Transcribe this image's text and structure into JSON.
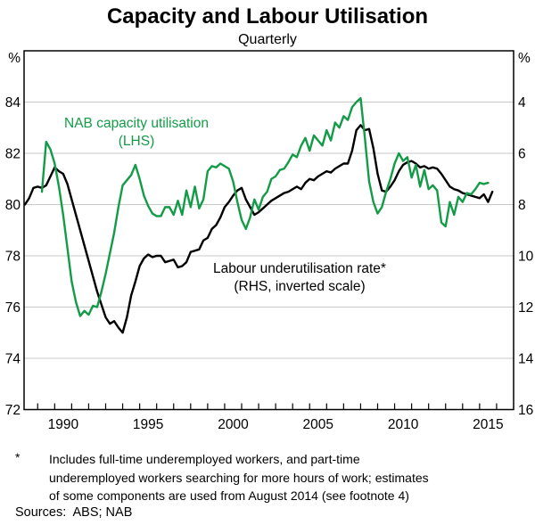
{
  "chart_data": {
    "type": "line",
    "title": "Capacity and Labour Utilisation",
    "subtitle": "Quarterly",
    "grid": true,
    "style": {
      "grid_color": "#c9c9c9",
      "axis_color": "#000000"
    },
    "x_axis": {
      "range": [
        1988.2,
        2017.0
      ],
      "minor_tick_start": 1989,
      "minor_tick_end": 2016,
      "labels": [
        1990,
        1995,
        2000,
        2005,
        2010,
        2015
      ]
    },
    "left_axis": {
      "unit": "%",
      "min": 72,
      "max": 86,
      "ticks": [
        84,
        82,
        80,
        78,
        76,
        74,
        72
      ],
      "gridlines": [
        84,
        82,
        80,
        78,
        76,
        74
      ]
    },
    "right_axis": {
      "unit": "%",
      "inverted": true,
      "offset": 88,
      "ticks": [
        4,
        6,
        8,
        10,
        12,
        14,
        16
      ],
      "note": "right value = 88 - left value (inverted scale)"
    },
    "series": [
      {
        "name": "NAB capacity utilisation (LHS)",
        "slug": "nab-capacity-utilisation",
        "label_lines": [
          "NAB capacity utilisation",
          "(LHS)"
        ],
        "axis": "left",
        "color": "#149b48",
        "x_start": 1989.25,
        "x_step": 0.25,
        "values": [
          80.5,
          82.45,
          82.15,
          81.6,
          80.7,
          79.6,
          78.3,
          77.0,
          76.2,
          75.65,
          75.85,
          75.7,
          76.05,
          76.0,
          76.6,
          77.3,
          78.1,
          78.9,
          79.9,
          80.75,
          80.95,
          81.15,
          81.55,
          81.0,
          80.35,
          79.95,
          79.65,
          79.55,
          79.55,
          79.9,
          79.9,
          79.6,
          80.15,
          79.6,
          80.55,
          79.9,
          80.7,
          79.85,
          80.2,
          81.3,
          81.5,
          81.45,
          81.6,
          81.5,
          81.4,
          80.9,
          80.1,
          79.4,
          79.05,
          79.5,
          80.2,
          79.8,
          80.3,
          80.5,
          81.0,
          81.1,
          81.35,
          81.4,
          81.65,
          81.95,
          81.85,
          82.3,
          82.6,
          82.1,
          82.7,
          82.5,
          82.3,
          82.9,
          82.5,
          83.2,
          83.0,
          83.45,
          83.3,
          83.8,
          84.0,
          84.15,
          82.6,
          80.9,
          80.1,
          79.65,
          79.9,
          80.5,
          81.0,
          81.6,
          82.0,
          81.7,
          81.85,
          81.05,
          81.55,
          80.7,
          81.35,
          80.6,
          80.75,
          80.55,
          79.3,
          79.15,
          80.1,
          79.6,
          80.3,
          80.1,
          80.45,
          80.4,
          80.6,
          80.85,
          80.8,
          80.85
        ]
      },
      {
        "name": "Labour underutilisation rate (RHS, inverted scale)",
        "slug": "labour-underutilisation-rate",
        "label_lines": [
          "Labour underutilisation rate*",
          "(RHS, inverted scale)"
        ],
        "axis": "right",
        "color": "#000000",
        "x_start": 1988.25,
        "x_step": 0.25,
        "values": [
          8.0,
          7.75,
          7.35,
          7.3,
          7.35,
          7.25,
          6.9,
          6.55,
          6.7,
          6.8,
          7.2,
          7.8,
          8.4,
          9.0,
          9.6,
          10.2,
          10.8,
          11.4,
          11.9,
          12.4,
          12.65,
          12.55,
          12.8,
          13.0,
          12.4,
          11.55,
          11.0,
          10.4,
          10.1,
          9.95,
          10.05,
          10.0,
          10.0,
          10.25,
          10.2,
          10.15,
          10.45,
          10.4,
          10.25,
          9.85,
          9.8,
          9.75,
          9.4,
          9.3,
          8.95,
          8.8,
          8.5,
          8.1,
          7.9,
          7.65,
          7.45,
          7.35,
          7.8,
          8.1,
          8.4,
          8.3,
          8.15,
          8.0,
          7.85,
          7.75,
          7.65,
          7.55,
          7.5,
          7.4,
          7.3,
          7.4,
          7.15,
          7.0,
          7.05,
          6.9,
          6.8,
          6.7,
          6.75,
          6.6,
          6.5,
          6.4,
          6.4,
          5.9,
          5.1,
          4.9,
          5.1,
          5.05,
          5.8,
          6.8,
          7.45,
          7.5,
          7.3,
          7.05,
          6.7,
          6.45,
          6.35,
          6.3,
          6.4,
          6.55,
          6.5,
          6.6,
          6.55,
          6.6,
          6.8,
          7.05,
          7.3,
          7.4,
          7.45,
          7.55,
          7.6,
          7.65,
          7.7,
          7.75,
          7.6,
          7.9,
          7.5
        ]
      }
    ]
  },
  "footnote": {
    "marker": "*",
    "lines": [
      "Includes full-time underemployed workers, and part-time",
      "underemployed workers searching for more hours of work; estimates",
      "of some components are used from August 2014 (see footnote 4)"
    ]
  },
  "sources_line": "Sources:  ABS; NAB"
}
